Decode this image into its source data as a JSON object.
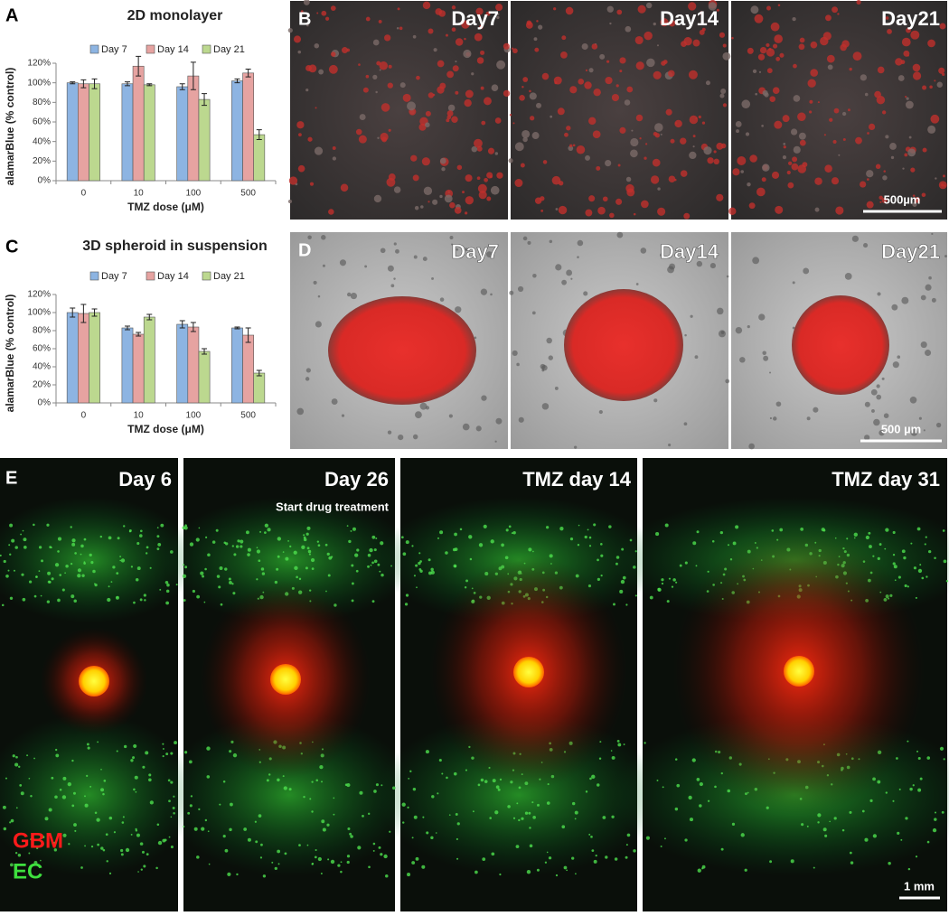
{
  "panels": {
    "a": "A",
    "b": "B",
    "c": "C",
    "d": "D",
    "e": "E"
  },
  "chart_data": [
    {
      "type": "bar",
      "title": "2D monolayer",
      "x_label": "TMZ dose (μM)",
      "y_label": "alamarBlue (% control)",
      "categories": [
        "0",
        "10",
        "100",
        "500"
      ],
      "series": [
        {
          "name": "Day 7",
          "color": "#8db4e2",
          "values": [
            100,
            99,
            96,
            102
          ],
          "errors": [
            1,
            2,
            3,
            2
          ]
        },
        {
          "name": "Day 14",
          "color": "#e6a3a1",
          "values": [
            99,
            117,
            107,
            110
          ],
          "errors": [
            4,
            10,
            14,
            4
          ]
        },
        {
          "name": "Day 21",
          "color": "#bcd88f",
          "values": [
            99,
            98,
            83,
            47
          ],
          "errors": [
            5,
            1,
            6,
            5
          ]
        }
      ],
      "ylim": [
        0,
        120
      ],
      "yticks": [
        {
          "value": 0,
          "label": "0%"
        },
        {
          "value": 20,
          "label": "20%"
        },
        {
          "value": 40,
          "label": "40%"
        },
        {
          "value": 60,
          "label": "60%"
        },
        {
          "value": 80,
          "label": "80%"
        },
        {
          "value": 100,
          "label": "100%"
        },
        {
          "value": 120,
          "label": "120%"
        }
      ],
      "legend": "top"
    },
    {
      "type": "bar",
      "title": "3D spheroid in suspension",
      "x_label": "TMZ dose (μM)",
      "y_label": "alamarBlue (% control)",
      "categories": [
        "0",
        "10",
        "100",
        "500"
      ],
      "series": [
        {
          "name": "Day 7",
          "color": "#8db4e2",
          "values": [
            100,
            83,
            87,
            83
          ],
          "errors": [
            5,
            2,
            4,
            1
          ]
        },
        {
          "name": "Day 14",
          "color": "#e6a3a1",
          "values": [
            99,
            76,
            84,
            75
          ],
          "errors": [
            10,
            2,
            5,
            8
          ]
        },
        {
          "name": "Day 21",
          "color": "#bcd88f",
          "values": [
            100,
            95,
            57,
            33
          ],
          "errors": [
            4,
            3,
            3,
            3
          ]
        }
      ],
      "ylim": [
        0,
        120
      ],
      "yticks": [
        {
          "value": 0,
          "label": "0%"
        },
        {
          "value": 20,
          "label": "20%"
        },
        {
          "value": 40,
          "label": "40%"
        },
        {
          "value": 60,
          "label": "60%"
        },
        {
          "value": 80,
          "label": "80%"
        },
        {
          "value": 100,
          "label": "100%"
        },
        {
          "value": 120,
          "label": "120%"
        }
      ],
      "legend": "top"
    }
  ],
  "panel_b": {
    "labels": [
      "Day7",
      "Day14",
      "Day21"
    ],
    "scale_bar": "500µm"
  },
  "panel_d": {
    "labels": [
      "Day7",
      "Day14",
      "Day21"
    ],
    "scale_bar": "500 µm"
  },
  "panel_e": {
    "labels": [
      "Day 6",
      "Day 26",
      "TMZ day 14",
      "TMZ day 31"
    ],
    "note": "Start drug treatment",
    "legend": [
      "GBM",
      "EC"
    ],
    "scale_bar": "1 mm"
  }
}
